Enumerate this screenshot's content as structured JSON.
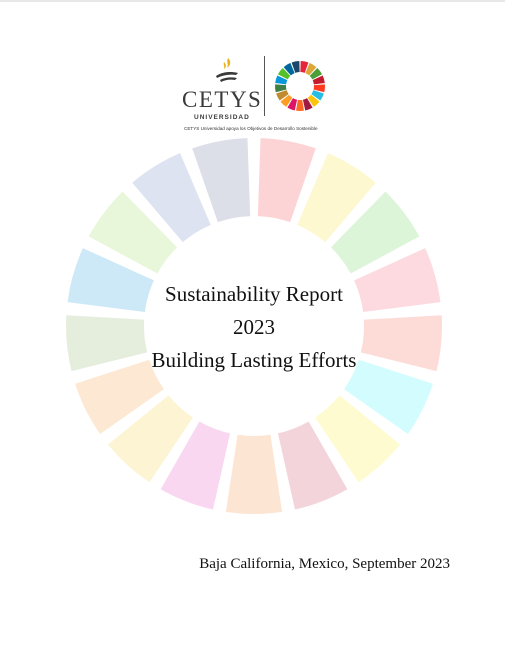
{
  "logo": {
    "name": "CETYS",
    "subtitle": "UNIVERSIDAD",
    "tagline": "CETYS Universidad apoya los Objetivos de Desarrollo Sostenible"
  },
  "title": {
    "line1": "Sustainability Report",
    "line2": "2023",
    "line3": "Building Lasting Efforts"
  },
  "footer": {
    "location_date": "Baja California, Mexico, September 2023"
  },
  "colors": {
    "sdg": [
      "#E5243B",
      "#DDA63A",
      "#4C9F38",
      "#C5192D",
      "#FF3A21",
      "#26BDE2",
      "#FCC30B",
      "#A21942",
      "#FD6925",
      "#DD1367",
      "#FD9D24",
      "#BF8B2E",
      "#3F7E44",
      "#0A97D9",
      "#56C02B",
      "#00689D",
      "#19486A"
    ],
    "faded": [
      "#FDD4D6",
      "#FDF8CF",
      "#DCF5D8",
      "#FDD9E0",
      "#FDDCD8",
      "#D2FCFD",
      "#FDFBCF",
      "#F3D4DA",
      "#FDE5D3",
      "#FAD7F0",
      "#FDF4D4",
      "#FDE9D3",
      "#E5EEDD",
      "#CDE9F7",
      "#E8F7DA",
      "#DDE3F0",
      "#DCDEE8"
    ]
  }
}
